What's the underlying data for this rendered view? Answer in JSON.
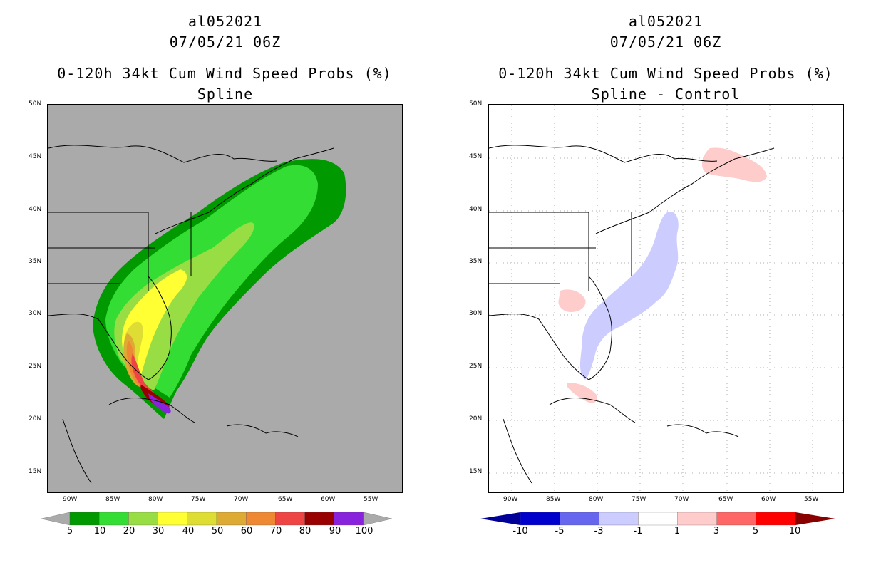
{
  "left_panel": {
    "storm_id": "al052021",
    "datetime": "07/05/21 06Z",
    "title": "0-120h 34kt Cum Wind Speed Probs (%)",
    "subtitle": "Spline"
  },
  "right_panel": {
    "storm_id": "al052021",
    "datetime": "07/05/21 06Z",
    "title": "0-120h 34kt Cum Wind Speed Probs (%)",
    "subtitle": "Spline - Control"
  },
  "lat_labels": [
    "50N",
    "45N",
    "40N",
    "35N",
    "30N",
    "25N",
    "20N",
    "15N"
  ],
  "lon_labels": [
    "90W",
    "85W",
    "80W",
    "75W",
    "70W",
    "65W",
    "60W",
    "55W"
  ],
  "left_colorbar": {
    "labels": [
      "5",
      "10",
      "20",
      "30",
      "40",
      "50",
      "60",
      "70",
      "80",
      "90",
      "100"
    ],
    "colors": [
      "#009900",
      "#33dd33",
      "#99dd44",
      "#ffff33",
      "#dddd33",
      "#ddaa33",
      "#ee8833",
      "#ee4444",
      "#990000",
      "#8822dd"
    ]
  },
  "right_colorbar": {
    "labels": [
      "-10",
      "-5",
      "-3",
      "-1",
      "1",
      "3",
      "5",
      "10"
    ],
    "colors": [
      "#0000cc",
      "#6666ee",
      "#ccccff",
      "#ffffff",
      "#ffcccc",
      "#ff6666",
      "#ff0000"
    ],
    "end_left": "#000099",
    "end_right": "#880000"
  },
  "colors": {
    "ocean_left": "#aaaaaa",
    "ocean_right": "#ffffff",
    "coast": "#000000"
  }
}
